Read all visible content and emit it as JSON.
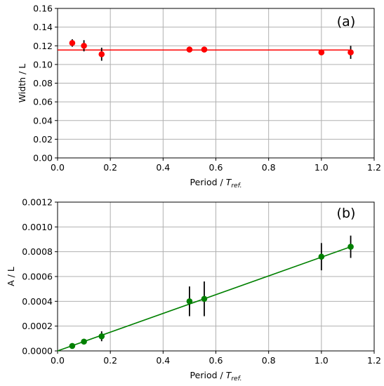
{
  "chart_data": [
    {
      "type": "scatter",
      "panel_label": "(a)",
      "xlabel_main": "Period / ",
      "xlabel_italic": "T",
      "xlabel_sub": "ref.",
      "ylabel": "Width / L",
      "xlim": [
        0.0,
        1.2
      ],
      "ylim": [
        0.0,
        0.16
      ],
      "x_ticks": [
        "0.0",
        "0.2",
        "0.4",
        "0.6",
        "0.8",
        "1.0",
        "1.2"
      ],
      "y_ticks": [
        "0.00",
        "0.02",
        "0.04",
        "0.06",
        "0.08",
        "0.10",
        "0.12",
        "0.14",
        "0.16"
      ],
      "grid": true,
      "marker_color": "#ff0000",
      "line_color": "#ff0000",
      "points": [
        {
          "x": 0.0556,
          "y": 0.123,
          "err": 0.004
        },
        {
          "x": 0.1,
          "y": 0.12,
          "err": 0.006
        },
        {
          "x": 0.167,
          "y": 0.111,
          "err": 0.007
        },
        {
          "x": 0.5,
          "y": 0.116,
          "err": 0.003
        },
        {
          "x": 0.556,
          "y": 0.116,
          "err": 0.003
        },
        {
          "x": 1.0,
          "y": 0.113,
          "err": 0.002
        },
        {
          "x": 1.111,
          "y": 0.113,
          "err": 0.007
        }
      ],
      "fit_line": {
        "x": [
          0.0,
          1.111
        ],
        "y": [
          0.1155,
          0.1155
        ]
      }
    },
    {
      "type": "scatter",
      "panel_label": "(b)",
      "xlabel_main": "Period / ",
      "xlabel_italic": "T",
      "xlabel_sub": "ref.",
      "ylabel": "A / L",
      "xlim": [
        0.0,
        1.2
      ],
      "ylim": [
        0.0,
        0.0012
      ],
      "x_ticks": [
        "0.0",
        "0.2",
        "0.4",
        "0.6",
        "0.8",
        "1.0",
        "1.2"
      ],
      "y_ticks": [
        "0.0000",
        "0.0002",
        "0.0004",
        "0.0006",
        "0.0008",
        "0.0010",
        "0.0012"
      ],
      "grid": true,
      "marker_color": "#008000",
      "line_color": "#008000",
      "points": [
        {
          "x": 0.0556,
          "y": 4e-05,
          "err": 8e-06
        },
        {
          "x": 0.1,
          "y": 7.5e-05,
          "err": 1e-05
        },
        {
          "x": 0.167,
          "y": 0.000118,
          "err": 4e-05
        },
        {
          "x": 0.5,
          "y": 0.0004,
          "err": 0.00012
        },
        {
          "x": 0.556,
          "y": 0.00042,
          "err": 0.00014
        },
        {
          "x": 1.0,
          "y": 0.00076,
          "err": 0.00011
        },
        {
          "x": 1.111,
          "y": 0.00084,
          "err": 9e-05
        }
      ],
      "fit_line": {
        "x": [
          0.0,
          1.111
        ],
        "y": [
          0.0,
          0.00084
        ]
      }
    }
  ]
}
